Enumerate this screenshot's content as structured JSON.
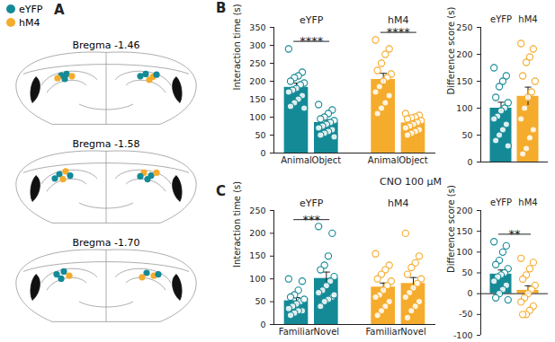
{
  "chart_data": [
    {
      "type": "diagram",
      "panel": "A",
      "legend": [
        {
          "name": "eYFP",
          "color": "#148a97"
        },
        {
          "name": "hM4",
          "color": "#f5ab2c"
        }
      ],
      "sections": [
        "Bregma -1.46",
        "Bregma -1.58",
        "Bregma -1.70"
      ]
    },
    {
      "type": "bar",
      "panel": "B",
      "ylabel": "Interaction time (s)",
      "categories": [
        "Animal",
        "Object"
      ],
      "ylim": [
        0,
        350
      ],
      "yticks": [
        0,
        50,
        100,
        150,
        200,
        250,
        300,
        350
      ],
      "series": [
        {
          "name": "eYFP",
          "color": "#148a97",
          "values": [
            183,
            85
          ],
          "errors": [
            12,
            7
          ],
          "annotation": "****",
          "points": [
            [
              290,
              225,
              215,
              210,
              200,
              195,
              190,
              180,
              175,
              170,
              160,
              150,
              140,
              130,
              125
            ],
            [
              135,
              120,
              110,
              100,
              95,
              90,
              85,
              80,
              75,
              70,
              65,
              60,
              55,
              50,
              45
            ]
          ]
        },
        {
          "name": "hM4",
          "color": "#f5ab2c",
          "values": [
            205,
            84
          ],
          "errors": [
            17,
            6
          ],
          "annotation": "****",
          "points": [
            [
              315,
              290,
              275,
              250,
              230,
              220,
              210,
              200,
              185,
              170,
              160,
              140,
              125,
              110
            ],
            [
              110,
              105,
              100,
              98,
              95,
              90,
              85,
              80,
              75,
              70,
              65,
              60,
              55,
              50
            ]
          ]
        }
      ]
    },
    {
      "type": "bar",
      "ylabel": "Difference score (s)",
      "categories": [
        "eYFP",
        "hM4"
      ],
      "colors": [
        "#148a97",
        "#f5ab2c"
      ],
      "values": [
        100,
        122
      ],
      "errors": [
        11,
        17
      ],
      "points": [
        [
          175,
          160,
          150,
          140,
          120,
          110,
          100,
          95,
          85,
          80,
          70,
          60,
          50,
          40,
          30
        ],
        [
          220,
          210,
          195,
          185,
          160,
          150,
          130,
          120,
          100,
          80,
          60,
          45,
          25,
          15
        ]
      ],
      "ylim": [
        0,
        250
      ],
      "yticks": [
        0,
        50,
        100,
        150,
        200,
        250
      ]
    },
    {
      "type": "bar",
      "panel": "C",
      "title": "CNO 100 μM",
      "ylabel": "Interaction time (s)",
      "categories": [
        "Familiar",
        "Novel"
      ],
      "ylim": [
        0,
        250
      ],
      "yticks": [
        0,
        50,
        100,
        150,
        200,
        250
      ],
      "series": [
        {
          "name": "eYFP",
          "color": "#148a97",
          "values": [
            52,
            101
          ],
          "errors": [
            7,
            14
          ],
          "annotation": "***",
          "points": [
            [
              100,
              95,
              75,
              65,
              60,
              55,
              50,
              45,
              40,
              35,
              30,
              30,
              25,
              20,
              55
            ],
            [
              215,
              200,
              150,
              130,
              120,
              105,
              95,
              85,
              75,
              70,
              60,
              55,
              50,
              40,
              65
            ]
          ]
        },
        {
          "name": "hM4",
          "color": "#f5ab2c",
          "values": [
            82,
            90
          ],
          "errors": [
            9,
            13
          ],
          "points": [
            [
              155,
              130,
              120,
              110,
              100,
              95,
              85,
              75,
              65,
              60,
              50,
              40,
              30,
              20
            ],
            [
              200,
              150,
              135,
              125,
              110,
              100,
              90,
              80,
              70,
              60,
              50,
              40,
              30,
              15
            ]
          ]
        }
      ]
    },
    {
      "type": "bar",
      "ylabel": "Difference score (s)",
      "categories": [
        "eYFP",
        "hM4"
      ],
      "colors": [
        "#148a97",
        "#f5ab2c"
      ],
      "values": [
        47,
        8
      ],
      "errors": [
        10,
        11
      ],
      "annotation": "**",
      "points": [
        [
          125,
          115,
          100,
          80,
          70,
          60,
          50,
          45,
          40,
          30,
          20,
          10,
          0,
          -10,
          -15
        ],
        [
          85,
          75,
          60,
          45,
          35,
          20,
          10,
          0,
          -10,
          -20,
          -30,
          -40,
          -50,
          -50
        ]
      ],
      "ylim": [
        -100,
        200
      ],
      "yticks": [
        -100,
        -50,
        0,
        50,
        100,
        150,
        200
      ]
    }
  ]
}
